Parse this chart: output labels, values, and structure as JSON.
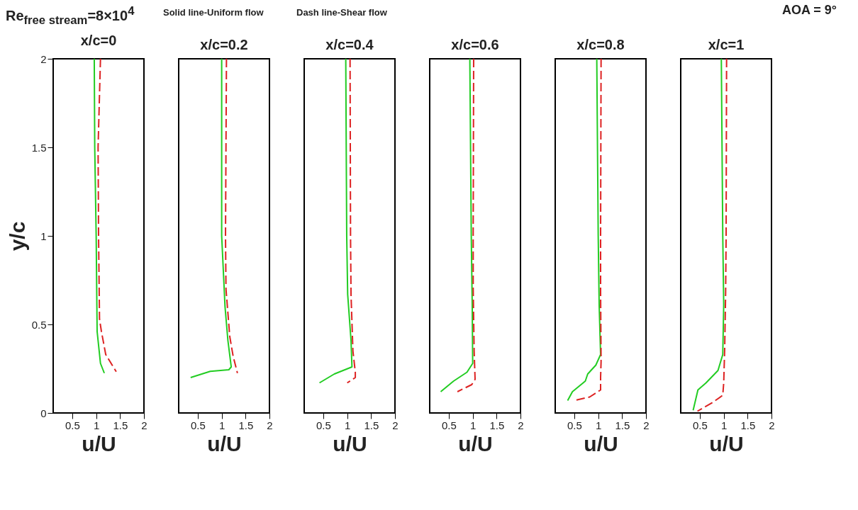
{
  "chart_data": [
    {
      "type": "line",
      "title": "x/c=0",
      "xlabel": "u/U",
      "ylabel": "y/c",
      "xlim": [
        0.1,
        2
      ],
      "ylim": [
        0,
        2
      ],
      "xticks": [
        0.5,
        1,
        1.5,
        2
      ],
      "yticks": [
        0,
        0.5,
        1,
        1.5,
        2
      ],
      "grid": false,
      "annotations": [
        "Re$_{free stream}$=8×10$^{4}$",
        "Solid line-Uniform flow",
        "Dash line-Shear flow"
      ],
      "series": [
        {
          "color": "#22cc22",
          "line_style": "solid",
          "x": [
            0.96,
            0.97,
            1.0,
            1.02,
            1.09,
            1.17
          ],
          "values": [
            2,
            1.5,
            1.0,
            0.46,
            0.28,
            0.225
          ]
        },
        {
          "color": "#dd2222",
          "line_style": "dashed",
          "x": [
            1.09,
            1.04,
            1.05,
            1.07,
            1.11,
            1.2,
            1.42
          ],
          "values": [
            2,
            1.5,
            1.0,
            0.53,
            0.46,
            0.33,
            0.233
          ]
        }
      ]
    },
    {
      "type": "line",
      "title": "x/c=0.2",
      "xlabel": "u/U",
      "xlim": [
        0.1,
        2
      ],
      "ylim": [
        0,
        2
      ],
      "xticks": [
        0.5,
        1,
        1.5,
        2
      ],
      "yticks": [
        0,
        0.5,
        1,
        1.5,
        2
      ],
      "tick_labels": "x",
      "grid": false,
      "series": [
        {
          "color": "#22cc22",
          "line_style": "solid",
          "x": [
            1.0,
            1.0,
            1.07,
            1.13,
            1.2,
            1.15,
            0.76,
            0.35
          ],
          "values": [
            2,
            1.0,
            0.6,
            0.41,
            0.26,
            0.244,
            0.235,
            0.2
          ]
        },
        {
          "color": "#dd2222",
          "line_style": "dashed",
          "x": [
            1.1,
            1.08,
            1.09,
            1.17,
            1.24,
            1.33
          ],
          "values": [
            2,
            1.0,
            0.7,
            0.43,
            0.32,
            0.225
          ]
        }
      ]
    },
    {
      "type": "line",
      "title": "x/c=0.4",
      "xlabel": "u/U",
      "xlim": [
        0.1,
        2
      ],
      "ylim": [
        0,
        2
      ],
      "xticks": [
        0.5,
        1,
        1.5,
        2
      ],
      "yticks": [
        0,
        0.5,
        1,
        1.5,
        2
      ],
      "tick_labels": "x",
      "grid": false,
      "series": [
        {
          "color": "#22cc22",
          "line_style": "solid",
          "x": [
            0.97,
            0.99,
            1.01,
            1.08,
            1.1,
            0.73,
            0.42
          ],
          "values": [
            2,
            1.0,
            0.67,
            0.41,
            0.26,
            0.22,
            0.17
          ]
        },
        {
          "color": "#dd2222",
          "line_style": "dashed",
          "x": [
            1.06,
            1.07,
            1.08,
            1.12,
            1.17,
            1.17,
            1.0
          ],
          "values": [
            2,
            1.0,
            0.67,
            0.35,
            0.23,
            0.2,
            0.17
          ]
        }
      ]
    },
    {
      "type": "line",
      "title": "x/c=0.6",
      "xlabel": "u/U",
      "xlim": [
        0.1,
        2
      ],
      "ylim": [
        0,
        2
      ],
      "xticks": [
        0.5,
        1,
        1.5,
        2
      ],
      "yticks": [
        0,
        0.5,
        1,
        1.5,
        2
      ],
      "tick_labels": "x",
      "grid": false,
      "series": [
        {
          "color": "#22cc22",
          "line_style": "solid",
          "x": [
            0.94,
            0.97,
            0.99,
            1.0,
            0.88,
            0.6,
            0.33
          ],
          "values": [
            2,
            1.0,
            0.61,
            0.28,
            0.23,
            0.18,
            0.12
          ]
        },
        {
          "color": "#dd2222",
          "line_style": "dashed",
          "x": [
            1.02,
            1.01,
            1.01,
            1.03,
            1.05,
            0.98,
            0.68
          ],
          "values": [
            2,
            1.0,
            0.71,
            0.35,
            0.19,
            0.16,
            0.12
          ]
        }
      ]
    },
    {
      "type": "line",
      "title": "x/c=0.8",
      "xlabel": "u/U",
      "xlim": [
        0.1,
        2
      ],
      "ylim": [
        0,
        2
      ],
      "xticks": [
        0.5,
        1,
        1.5,
        2
      ],
      "yticks": [
        0,
        0.5,
        1,
        1.5,
        2
      ],
      "tick_labels": "x",
      "grid": false,
      "series": [
        {
          "color": "#22cc22",
          "line_style": "solid",
          "x": [
            0.97,
            1.0,
            1.02,
            1.05,
            0.95,
            0.78,
            0.73,
            0.46,
            0.36
          ],
          "values": [
            2,
            1.0,
            0.61,
            0.33,
            0.27,
            0.22,
            0.18,
            0.12,
            0.07
          ]
        },
        {
          "color": "#dd2222",
          "line_style": "dashed",
          "x": [
            1.06,
            1.05,
            1.05,
            1.06,
            1.05,
            1.05,
            0.82,
            0.5
          ],
          "values": [
            2,
            1.0,
            0.68,
            0.29,
            0.2,
            0.13,
            0.09,
            0.07
          ]
        }
      ]
    },
    {
      "type": "line",
      "title": "x/c=1",
      "xlabel": "u/U",
      "xlim": [
        0.1,
        2
      ],
      "ylim": [
        0,
        2
      ],
      "xticks": [
        0.5,
        1,
        1.5,
        2
      ],
      "yticks": [
        0,
        0.5,
        1,
        1.5,
        2
      ],
      "tick_labels": "x",
      "grid": false,
      "annotations": [
        "AOA = 9°"
      ],
      "series": [
        {
          "color": "#22cc22",
          "line_style": "solid",
          "x": [
            0.95,
            0.98,
            1.0,
            0.98,
            0.88,
            0.63,
            0.46,
            0.36
          ],
          "values": [
            2,
            1.0,
            0.61,
            0.33,
            0.24,
            0.17,
            0.13,
            0.015
          ]
        },
        {
          "color": "#dd2222",
          "line_style": "dashed",
          "x": [
            1.06,
            1.05,
            1.04,
            1.02,
            1.0,
            0.98,
            0.77,
            0.45
          ],
          "values": [
            2,
            1.0,
            0.68,
            0.36,
            0.17,
            0.1,
            0.06,
            0.01
          ]
        }
      ]
    }
  ]
}
